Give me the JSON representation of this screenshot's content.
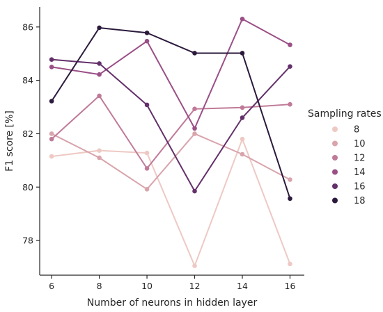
{
  "chart_data": {
    "type": "line",
    "xlabel": "Number of neurons in hidden layer",
    "ylabel": "F1 score [%]",
    "x": [
      6,
      8,
      10,
      12,
      14,
      16
    ],
    "xlim": [
      5.5,
      16.6
    ],
    "ylim": [
      76.7,
      86.75
    ],
    "xticks": [
      6,
      8,
      10,
      12,
      14,
      16
    ],
    "yticks": [
      78,
      80,
      82,
      84,
      86
    ],
    "grid": false,
    "legend": {
      "title": "Sampling rates",
      "placement": "right"
    },
    "series": [
      {
        "name": "8",
        "color": "#eec9c4",
        "values": [
          81.15,
          81.37,
          81.28,
          77.05,
          81.8,
          77.12
        ]
      },
      {
        "name": "10",
        "color": "#d9a4ac",
        "values": [
          82.0,
          81.1,
          79.92,
          82.0,
          81.23,
          80.28
        ]
      },
      {
        "name": "12",
        "color": "#c07a98",
        "values": [
          81.8,
          83.42,
          80.7,
          82.93,
          82.98,
          83.1
        ]
      },
      {
        "name": "14",
        "color": "#9a4f86",
        "values": [
          84.5,
          84.22,
          85.47,
          82.2,
          86.3,
          85.33
        ]
      },
      {
        "name": "16",
        "color": "#64306a",
        "values": [
          84.78,
          84.63,
          83.08,
          79.85,
          82.6,
          84.52
        ]
      },
      {
        "name": "18",
        "color": "#2c1a3d",
        "values": [
          83.22,
          85.97,
          85.78,
          85.02,
          85.02,
          79.57
        ]
      }
    ]
  }
}
